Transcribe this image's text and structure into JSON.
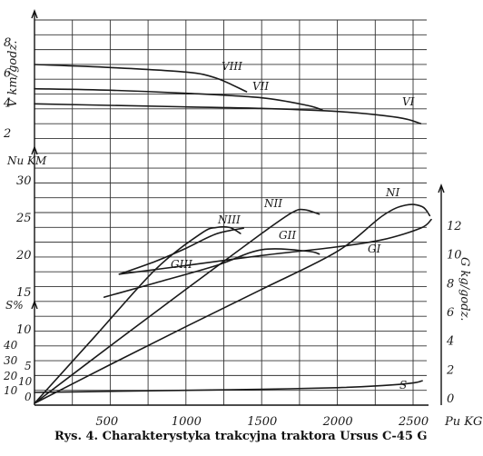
{
  "caption": "Rys. 4. Charakterystyka trakcyjna traktora Ursus C-45 G",
  "chart_data": {
    "type": "line",
    "title": "Rys. 4. Charakterystyka trakcyjna traktora Ursus C-45 G",
    "grid": true,
    "x_axis": {
      "label": "Pu KG",
      "range": [
        0,
        2500
      ],
      "ticks": [
        {
          "value": 500,
          "label": "500"
        },
        {
          "value": 1000,
          "label": "1000"
        },
        {
          "value": 1500,
          "label": "1500"
        },
        {
          "value": 2000,
          "label": "2000"
        },
        {
          "value": 2500,
          "label": "2500"
        }
      ]
    },
    "speed_axis": {
      "label": "V km/godz.",
      "range": [
        0,
        9
      ],
      "ticks": [
        {
          "value": 2,
          "label": "2"
        },
        {
          "value": 4,
          "label": "4"
        },
        {
          "value": 6,
          "label": "6"
        },
        {
          "value": 8,
          "label": "8"
        }
      ]
    },
    "power_axis": {
      "label": "Nu KM",
      "range": [
        0,
        32
      ],
      "ticks": [
        {
          "value": 10,
          "label": "10"
        },
        {
          "value": 15,
          "label": "15"
        },
        {
          "value": 20,
          "label": "20"
        },
        {
          "value": 25,
          "label": "25"
        },
        {
          "value": 30,
          "label": "30"
        }
      ]
    },
    "slip_axis": {
      "label": "S%",
      "range": [
        0,
        45
      ],
      "ticks": [
        {
          "value": 10,
          "label": "10"
        },
        {
          "value": 20,
          "label": "20"
        },
        {
          "value": 30,
          "label": "30"
        },
        {
          "value": 40,
          "label": "40"
        }
      ],
      "extra_ticks": [
        {
          "value": 0,
          "label": "0"
        },
        {
          "value": 5,
          "label": "5"
        },
        {
          "value": 10,
          "label": "10"
        }
      ]
    },
    "fuel_axis": {
      "label": "G kg/godz.",
      "range": [
        0,
        14
      ],
      "ticks": [
        {
          "value": 0,
          "label": "0"
        },
        {
          "value": 2,
          "label": "2"
        },
        {
          "value": 4,
          "label": "4"
        },
        {
          "value": 6,
          "label": "6"
        },
        {
          "value": 8,
          "label": "8"
        },
        {
          "value": 10,
          "label": "10"
        },
        {
          "value": 12,
          "label": "12"
        }
      ]
    },
    "series": [
      {
        "name": "VIII",
        "axis": "speed",
        "x": [
          0,
          500,
          1000,
          1200,
          1400
        ],
        "y": [
          6.5,
          6.3,
          6.0,
          5.6,
          4.7
        ]
      },
      {
        "name": "VII",
        "axis": "speed",
        "x": [
          0,
          500,
          1000,
          1500,
          1800,
          1900
        ],
        "y": [
          4.9,
          4.8,
          4.6,
          4.3,
          3.8,
          3.5
        ]
      },
      {
        "name": "VI",
        "axis": "speed",
        "x": [
          0,
          500,
          1000,
          1500,
          2000,
          2400,
          2550
        ],
        "y": [
          3.9,
          3.8,
          3.7,
          3.6,
          3.4,
          3.0,
          2.6
        ]
      },
      {
        "name": "NIII",
        "axis": "power",
        "x": [
          0,
          400,
          800,
          1100,
          1200,
          1290,
          1360
        ],
        "y": [
          0,
          9,
          18,
          22.8,
          23.6,
          23.6,
          22.8
        ]
      },
      {
        "name": "NII",
        "axis": "power",
        "x": [
          0,
          500,
          1000,
          1500,
          1700,
          1780,
          1880
        ],
        "y": [
          0,
          7.7,
          15.3,
          22.8,
          25.6,
          26.0,
          25.4
        ]
      },
      {
        "name": "NI",
        "axis": "power",
        "x": [
          0,
          500,
          1000,
          1500,
          2000,
          2300,
          2450,
          2560,
          2610
        ],
        "y": [
          0,
          5.2,
          10.3,
          15.3,
          20.4,
          25.2,
          26.6,
          26.4,
          25.2
        ]
      },
      {
        "name": "GIII",
        "axis": "fuel",
        "x": [
          560,
          800,
          1000,
          1200,
          1380
        ],
        "y": [
          8.6,
          9.5,
          10.4,
          11.4,
          11.8
        ]
      },
      {
        "name": "GII",
        "axis": "fuel",
        "x": [
          460,
          800,
          1200,
          1500,
          1800,
          1880
        ],
        "y": [
          7.0,
          8.0,
          9.2,
          10.3,
          10.2,
          10.0
        ]
      },
      {
        "name": "GI",
        "axis": "fuel",
        "x": [
          560,
          1000,
          1500,
          2000,
          2300,
          2550,
          2620
        ],
        "y": [
          8.6,
          9.2,
          9.9,
          10.5,
          11.0,
          11.8,
          12.4
        ]
      },
      {
        "name": "S",
        "axis": "slip_small",
        "x": [
          0,
          500,
          1000,
          1500,
          2000,
          2300,
          2500,
          2560
        ],
        "y": [
          0,
          0.2,
          0.4,
          0.6,
          0.9,
          1.3,
          1.8,
          2.2
        ]
      }
    ]
  }
}
